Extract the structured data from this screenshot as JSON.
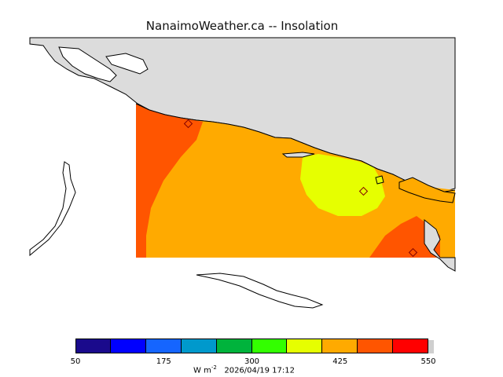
{
  "title": "NanaimoWeather.ca -- Insolation",
  "legend": {
    "colors": [
      "#1a0a8c",
      "#0000ff",
      "#1565ff",
      "#0099cc",
      "#00b33c",
      "#33ff00",
      "#e6ff00",
      "#ffaa00",
      "#ff5500",
      "#ff0000"
    ],
    "tick_labels": [
      "50",
      "175",
      "300",
      "425",
      "550"
    ],
    "units_base": "W m",
    "units_exp": "-2",
    "timestamp": "2026/04/19 17:12"
  },
  "map": {
    "land_color": "#dcdcdc",
    "field_colors": {
      "base": "#ffaa00",
      "high": "#ff5500",
      "peak": "#e6ff00"
    }
  }
}
